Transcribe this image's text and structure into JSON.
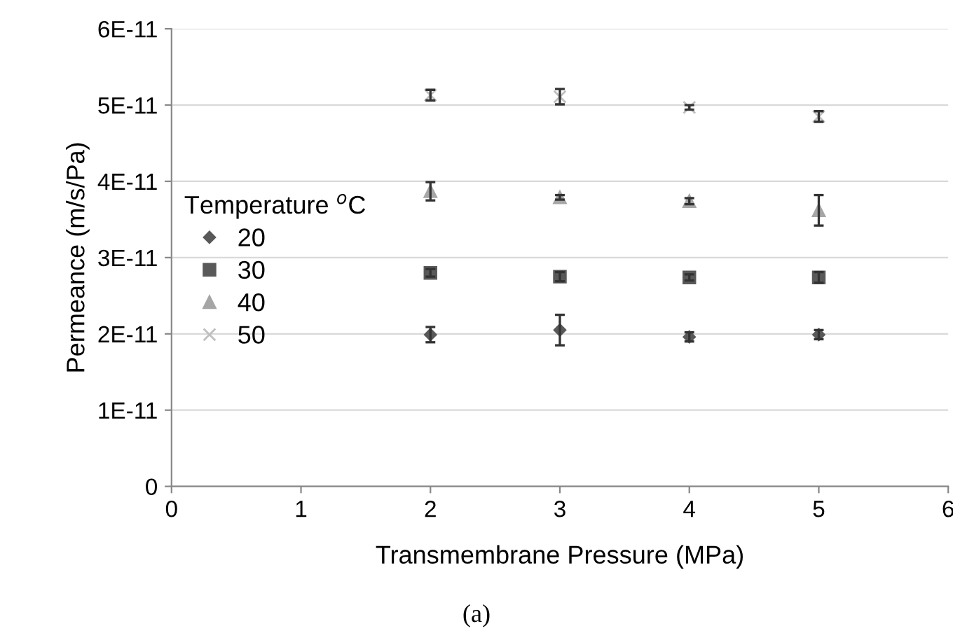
{
  "chart_data": {
    "type": "scatter",
    "xlabel": "Transmembrane Pressure (MPa)",
    "ylabel": "Permeance (m/s/Pa)",
    "legend_title": "Temperature $^{o}$C",
    "annotations": [
      "(a)"
    ],
    "x": [
      2,
      3,
      4,
      5
    ],
    "series": [
      {
        "name": "20",
        "color": "#595959",
        "marker": "diamond",
        "values": [
          1.99e-11,
          2.05e-11,
          1.96e-11,
          1.99e-11
        ],
        "errors": [
          1e-12,
          2e-12,
          6e-13,
          6e-13
        ]
      },
      {
        "name": "30",
        "color": "#595959",
        "marker": "square",
        "values": [
          2.8e-11,
          2.75e-11,
          2.74e-11,
          2.74e-11
        ],
        "errors": [
          5e-13,
          6e-13,
          4e-13,
          7e-13
        ]
      },
      {
        "name": "40",
        "color": "#a6a6a6",
        "marker": "triangle",
        "values": [
          3.87e-11,
          3.79e-11,
          3.74e-11,
          3.62e-11
        ],
        "errors": [
          1.2e-12,
          3e-13,
          4e-13,
          2e-12
        ]
      },
      {
        "name": "50",
        "color": "#bfbfbf",
        "marker": "cross",
        "values": [
          5.13e-11,
          5.11e-11,
          4.97e-11,
          4.85e-11
        ],
        "errors": [
          7e-13,
          1e-12,
          3e-13,
          7e-13
        ]
      }
    ],
    "xlim": [
      0,
      6
    ],
    "xticks": [
      0,
      1,
      2,
      3,
      4,
      5,
      6
    ],
    "ylim": [
      0,
      6e-11
    ],
    "yticks": [
      0,
      {
        "value": 1e-11,
        "label": "1E-11"
      },
      {
        "value": 2e-11,
        "label": "2E-11"
      },
      {
        "value": 3e-11,
        "label": "3E-11"
      },
      {
        "value": 4e-11,
        "label": "4E-11"
      },
      {
        "value": 5e-11,
        "label": "5E-11"
      },
      {
        "value": 6e-11,
        "label": "6E-11"
      }
    ],
    "grid": "y",
    "legend": "left"
  }
}
